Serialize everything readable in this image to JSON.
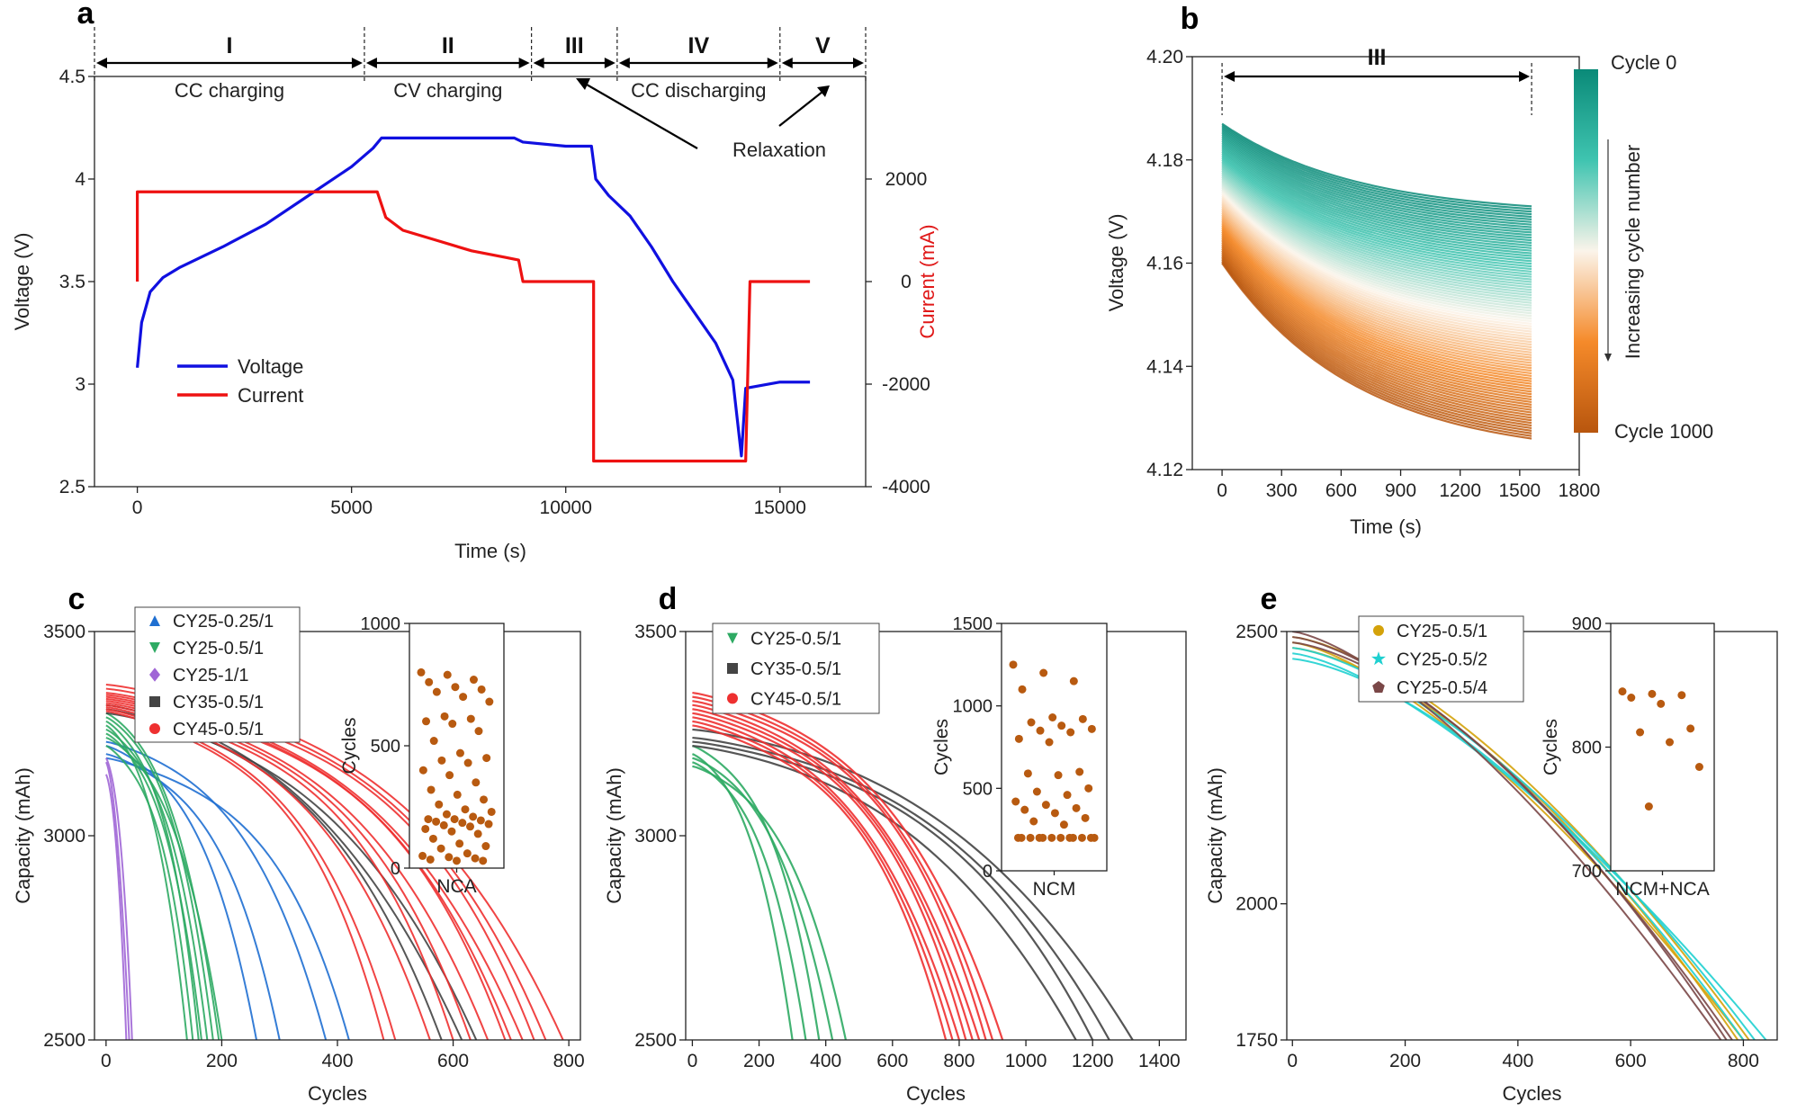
{
  "panels": {
    "a": {
      "letter": "a",
      "stage_labels": [
        "I",
        "II",
        "III",
        "IV",
        "V"
      ],
      "stage_names": [
        "CC charging",
        "CV charging",
        "CC discharging"
      ],
      "relaxation_label": "Relaxation",
      "legend": [
        "Voltage",
        "Current"
      ],
      "colors": {
        "voltage": "#1010e0",
        "current": "#ee1111"
      }
    },
    "b": {
      "letter": "b",
      "stage_label": "III",
      "colorbar": {
        "top": "Cycle 0",
        "bottom": "Cycle 1000",
        "mid": "Increasing cycle number",
        "colors": [
          "#0a8a78",
          "#3fc4b0",
          "#fbf4ea",
          "#f58a2a",
          "#b8560e"
        ]
      }
    },
    "c": {
      "letter": "c",
      "inset_category": "NCA"
    },
    "d": {
      "letter": "d",
      "inset_category": "NCM"
    },
    "e": {
      "letter": "e",
      "inset_category": "NCM+NCA"
    }
  },
  "chart_data": [
    {
      "id": "a",
      "type": "line",
      "xlabel": "Time (s)",
      "ylabel": "Voltage (V)",
      "y2label": "Current (mA)",
      "xlim": [
        -1000,
        17000
      ],
      "ylim": [
        2.5,
        4.5
      ],
      "y2lim": [
        -4000,
        4000
      ],
      "xticks": [
        0,
        5000,
        10000,
        15000
      ],
      "yticks": [
        2.5,
        3.0,
        3.5,
        4.0,
        4.5
      ],
      "y2ticks": [
        -4000,
        -2000,
        0,
        2000
      ],
      "stage_boundaries": [
        -1000,
        5300,
        9200,
        11200,
        15000,
        17000
      ],
      "series": [
        {
          "name": "Voltage",
          "axis": "left",
          "points": [
            [
              0,
              3.08
            ],
            [
              100,
              3.3
            ],
            [
              300,
              3.45
            ],
            [
              600,
              3.52
            ],
            [
              1000,
              3.57
            ],
            [
              2000,
              3.67
            ],
            [
              3000,
              3.78
            ],
            [
              4000,
              3.92
            ],
            [
              5000,
              4.06
            ],
            [
              5500,
              4.15
            ],
            [
              5700,
              4.2
            ],
            [
              8800,
              4.2
            ],
            [
              9000,
              4.18
            ],
            [
              10000,
              4.16
            ],
            [
              10600,
              4.16
            ],
            [
              10700,
              4.0
            ],
            [
              11000,
              3.92
            ],
            [
              11500,
              3.82
            ],
            [
              12000,
              3.67
            ],
            [
              12500,
              3.5
            ],
            [
              13000,
              3.35
            ],
            [
              13500,
              3.2
            ],
            [
              13900,
              3.02
            ],
            [
              14100,
              2.65
            ],
            [
              14200,
              2.98
            ],
            [
              15000,
              3.01
            ],
            [
              15700,
              3.01
            ]
          ]
        },
        {
          "name": "Current",
          "axis": "right",
          "points": [
            [
              0,
              0
            ],
            [
              0,
              1750
            ],
            [
              5600,
              1750
            ],
            [
              5800,
              1250
            ],
            [
              6200,
              1000
            ],
            [
              7000,
              800
            ],
            [
              7800,
              600
            ],
            [
              8600,
              470
            ],
            [
              8900,
              420
            ],
            [
              9000,
              0
            ],
            [
              10650,
              0
            ],
            [
              10650,
              -3500
            ],
            [
              14200,
              -3500
            ],
            [
              14300,
              0
            ],
            [
              15700,
              0
            ]
          ]
        }
      ]
    },
    {
      "id": "b",
      "type": "line",
      "xlabel": "Time (s)",
      "ylabel": "Voltage (V)",
      "xlim": [
        -150,
        1800
      ],
      "ylim": [
        4.12,
        4.2
      ],
      "xticks": [
        0,
        300,
        600,
        900,
        1200,
        1500,
        1800
      ],
      "yticks": [
        4.12,
        4.14,
        4.16,
        4.18,
        4.2
      ],
      "stage_span": [
        0,
        1560
      ],
      "curve_family": {
        "start_range": [
          4.187,
          4.16
        ],
        "end_range": [
          4.171,
          4.126
        ],
        "x_end": 1560
      }
    },
    {
      "id": "c",
      "type": "scatter",
      "xlabel": "Cycles",
      "ylabel": "Capacity (mAh)",
      "xlim": [
        -20,
        820
      ],
      "ylim": [
        2500,
        3500
      ],
      "xticks": [
        0,
        200,
        400,
        600,
        800
      ],
      "yticks": [
        2500,
        3000,
        3500
      ],
      "series": [
        {
          "name": "CY25-0.25/1",
          "color": "#1f6fd1",
          "marker": "triangle-up",
          "curves": [
            [
              3230,
              380
            ],
            [
              3200,
              300
            ],
            [
              3190,
              420
            ],
            [
              3220,
              260
            ]
          ]
        },
        {
          "name": "CY25-0.5/1",
          "color": "#2eaa63",
          "marker": "triangle-down",
          "curves": [
            [
              3300,
              195
            ],
            [
              3260,
              175
            ],
            [
              3280,
              160
            ],
            [
              3240,
              200
            ],
            [
              3290,
              185
            ],
            [
              3220,
              150
            ],
            [
              3270,
              140
            ],
            [
              3250,
              165
            ]
          ]
        },
        {
          "name": "CY25-1/1",
          "color": "#a066d6",
          "marker": "diamond",
          "curves": [
            [
              3180,
              40
            ],
            [
              3150,
              35
            ],
            [
              3190,
              45
            ]
          ]
        },
        {
          "name": "CY35-0.5/1",
          "color": "#444444",
          "marker": "square",
          "curves": [
            [
              3320,
              615
            ],
            [
              3300,
              640
            ],
            [
              3310,
              580
            ]
          ]
        },
        {
          "name": "CY45-0.5/1",
          "color": "#ee3030",
          "marker": "circle",
          "curves": [
            [
              3370,
              790
            ],
            [
              3360,
              760
            ],
            [
              3350,
              740
            ],
            [
              3345,
              720
            ],
            [
              3340,
              700
            ],
            [
              3335,
              690
            ],
            [
              3330,
              660
            ],
            [
              3325,
              630
            ],
            [
              3320,
              600
            ],
            [
              3315,
              560
            ],
            [
              3310,
              500
            ],
            [
              3305,
              480
            ]
          ]
        }
      ],
      "inset": {
        "category": "NCA",
        "ylabel": "Cycles",
        "ylim": [
          0,
          1000
        ],
        "yticks": [
          0,
          500,
          1000
        ],
        "values": [
          800,
          790,
          770,
          760,
          740,
          730,
          720,
          700,
          680,
          620,
          610,
          600,
          590,
          560,
          520,
          470,
          450,
          440,
          430,
          400,
          380,
          350,
          320,
          300,
          280,
          260,
          240,
          230,
          220,
          210,
          200,
          200,
          195,
          190,
          185,
          180,
          175,
          170,
          160,
          150,
          140,
          120,
          100,
          90,
          80,
          60,
          50,
          45,
          40,
          35,
          30,
          30
        ]
      }
    },
    {
      "id": "d",
      "type": "scatter",
      "xlabel": "Cycles",
      "ylabel": "Capacity (mAh)",
      "xlim": [
        -20,
        1480
      ],
      "ylim": [
        2500,
        3500
      ],
      "xticks": [
        0,
        200,
        400,
        600,
        800,
        1000,
        1200,
        1400
      ],
      "yticks": [
        2500,
        3000,
        3500
      ],
      "series": [
        {
          "name": "CY25-0.5/1",
          "color": "#2eaa63",
          "marker": "triangle-down",
          "curves": [
            [
              3200,
              300
            ],
            [
              3180,
              340
            ],
            [
              3220,
              380
            ],
            [
              3190,
              420
            ],
            [
              3170,
              460
            ]
          ]
        },
        {
          "name": "CY35-0.5/1",
          "color": "#444444",
          "marker": "square",
          "curves": [
            [
              3260,
              1320
            ],
            [
              3240,
              1250
            ],
            [
              3230,
              1200
            ],
            [
              3220,
              1150
            ]
          ]
        },
        {
          "name": "CY45-0.5/1",
          "color": "#ee3030",
          "marker": "circle",
          "curves": [
            [
              3350,
              930
            ],
            [
              3340,
              900
            ],
            [
              3330,
              880
            ],
            [
              3320,
              860
            ],
            [
              3310,
              840
            ],
            [
              3300,
              820
            ],
            [
              3290,
              800
            ],
            [
              3280,
              780
            ],
            [
              3270,
              760
            ]
          ]
        }
      ],
      "inset": {
        "category": "NCM",
        "ylabel": "Cycles",
        "ylim": [
          0,
          1500
        ],
        "yticks": [
          0,
          500,
          1000,
          1500
        ],
        "values": [
          1250,
          1200,
          1150,
          1100,
          930,
          920,
          900,
          880,
          860,
          850,
          840,
          800,
          780,
          600,
          590,
          580,
          500,
          480,
          460,
          420,
          400,
          380,
          370,
          350,
          320,
          300,
          280,
          200,
          200,
          200,
          200,
          200,
          200,
          200,
          200,
          200,
          200,
          200,
          200
        ]
      }
    },
    {
      "id": "e",
      "type": "scatter",
      "xlabel": "Cycles",
      "ylabel": "Capacity (mAh)",
      "xlim": [
        -10,
        860
      ],
      "ylim": [
        1750,
        2500
      ],
      "xticks": [
        0,
        200,
        400,
        600,
        800
      ],
      "yticks": [
        1750,
        2000,
        2500
      ],
      "series": [
        {
          "name": "CY25-0.5/1",
          "color": "#d4a20a",
          "marker": "circle",
          "curves": [
            [
              2480,
              800
            ],
            [
              2490,
              810
            ],
            [
              2470,
              790
            ]
          ]
        },
        {
          "name": "CY25-0.5/2",
          "color": "#1fd0d0",
          "marker": "star",
          "curves": [
            [
              2460,
              840
            ],
            [
              2470,
              820
            ],
            [
              2450,
              800
            ]
          ]
        },
        {
          "name": "CY25-0.5/4",
          "color": "#7a4747",
          "marker": "pentagon",
          "curves": [
            [
              2500,
              760
            ],
            [
              2490,
              780
            ],
            [
              2480,
              770
            ]
          ]
        }
      ],
      "inset": {
        "category": "NCM+NCA",
        "ylabel": "Cycles",
        "ylim": [
          700,
          900
        ],
        "yticks": [
          700,
          800,
          900
        ],
        "values": [
          845,
          843,
          842,
          840,
          835,
          815,
          812,
          804,
          784,
          752
        ]
      }
    }
  ]
}
